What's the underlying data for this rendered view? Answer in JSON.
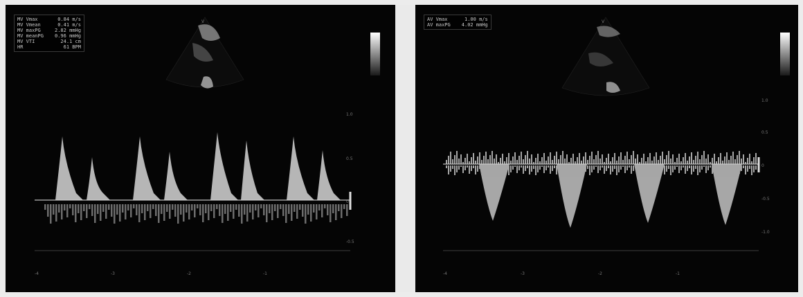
{
  "left_panel": {
    "measurements": [
      {
        "label": "MV Vmax",
        "value": "0.84 m/s"
      },
      {
        "label": "MV Vmean",
        "value": "0.41 m/s"
      },
      {
        "label": "MV maxPG",
        "value": "2.82 mmHg"
      },
      {
        "label": "MV meanPG",
        "value": "0.96 mmHg"
      },
      {
        "label": "MV VTI",
        "value": "24.1 cm"
      },
      {
        "label": "HR",
        "value": "61 BPM"
      }
    ]
  },
  "right_panel": {
    "measurements": [
      {
        "label": "AV Vmax",
        "value": "1.00 m/s"
      },
      {
        "label": "AV maxPG",
        "value": "4.02 mmHg"
      }
    ]
  },
  "colors": {
    "background": "#050505",
    "text": "#c8c8c8",
    "spectrum": "#d8d8d8",
    "separator": "#eaeaea"
  }
}
